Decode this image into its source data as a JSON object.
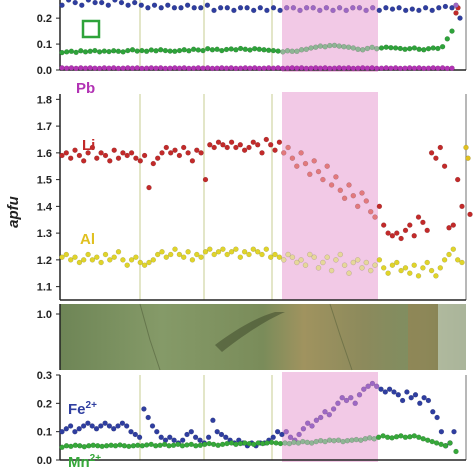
{
  "colors": {
    "highlight": "#f2c9e6",
    "axis": "#222222",
    "guide": "#e3e6c8",
    "frame": "#888888",
    "lead": "#b233b4",
    "green_box": "#2ea33a",
    "lithium": "#c22a2a",
    "lithium_in_band": "#e2797d",
    "aluminium": "#e0d42a",
    "aluminium_in_band": "#e6d79a",
    "iron": "#2f3ea0",
    "iron_in_band": "#9d68c4",
    "manganese": "#36a83a",
    "manganese_in_band": "#8fb595",
    "core_photo_base": "#788e5e",
    "core_photo_band": "#a3966a"
  },
  "chart_data": [
    {
      "id": "top",
      "type": "scatter",
      "ylim": [
        0,
        0.27
      ],
      "yticks": [
        "0.0",
        "0.1",
        "0.2"
      ],
      "ytick_values": [
        0,
        0.1,
        0.2
      ],
      "legend_marker": "green-square",
      "labels": [
        {
          "text": "Pb",
          "color": "#b233b4"
        }
      ],
      "series": [
        {
          "key": "green",
          "color": "#2ea33a",
          "band_color": "#8fb595",
          "y": [
            0.067,
            0.07,
            0.072,
            0.068,
            0.074,
            0.07,
            0.072,
            0.075,
            0.07,
            0.073,
            0.071,
            0.074,
            0.072,
            0.07,
            0.075,
            0.078,
            0.073,
            0.075,
            0.072,
            0.077,
            0.074,
            0.078,
            0.075,
            0.073,
            0.072,
            0.075,
            0.078,
            0.074,
            0.08,
            0.077,
            0.075,
            0.082,
            0.078,
            0.08,
            0.075,
            0.079,
            0.081,
            0.078,
            0.083,
            0.08,
            0.077,
            0.082,
            0.08,
            0.078,
            0.076,
            0.075,
            0.073,
            0.07,
            0.074,
            0.072,
            0.072,
            0.078,
            0.08,
            0.085,
            0.088,
            0.092,
            0.09,
            0.094,
            0.095,
            0.092,
            0.09,
            0.088,
            0.085,
            0.08,
            0.078,
            0.083,
            0.087,
            0.082,
            0.085,
            0.088,
            0.086,
            0.085,
            0.083,
            0.08,
            0.082,
            0.085,
            0.08,
            0.078,
            0.082,
            0.085,
            0.083,
            0.09,
            0.12,
            0.15
          ]
        },
        {
          "key": "blue",
          "color": "#2f3ea0",
          "band_color": "#9d68c4",
          "y": [
            0.25,
            0.27,
            0.26,
            0.25,
            0.27,
            0.26,
            0.26,
            0.25,
            0.27,
            0.26,
            0.25,
            0.26,
            0.25,
            0.24,
            0.25,
            0.24,
            0.25,
            0.24,
            0.24,
            0.25,
            0.24,
            0.24,
            0.25,
            0.23,
            0.24,
            0.24,
            0.23,
            0.24,
            0.24,
            0.23,
            0.24,
            0.23,
            0.24,
            0.23,
            0.24,
            0.24,
            0.23,
            0.24,
            0.24,
            0.23,
            0.24,
            0.23,
            0.24,
            0.23,
            0.24,
            0.24,
            0.23,
            0.24,
            0.23,
            0.24,
            0.235,
            0.24,
            0.23,
            0.235,
            0.23,
            0.24,
            0.23,
            0.24,
            0.245,
            0.24
          ]
        },
        {
          "key": "lead",
          "color": "#b233b4",
          "band_color": "#b233b4",
          "y": [
            0.008,
            0.007,
            0.008,
            0.006,
            0.008,
            0.007,
            0.008,
            0.007,
            0.006,
            0.008,
            0.007,
            0.008,
            0.006,
            0.007,
            0.008,
            0.007,
            0.008,
            0.006,
            0.007,
            0.008,
            0.007,
            0.008,
            0.006,
            0.007,
            0.008,
            0.007,
            0.008,
            0.006,
            0.007,
            0.008,
            0.007,
            0.008,
            0.006,
            0.007,
            0.008,
            0.007,
            0.008,
            0.006,
            0.007,
            0.008,
            0.007,
            0.008,
            0.006,
            0.007,
            0.008,
            0.007,
            0.008,
            0.006,
            0.007,
            0.008,
            0.007,
            0.008,
            0.006,
            0.007,
            0.008,
            0.007,
            0.008,
            0.006,
            0.007,
            0.008,
            0.007,
            0.008,
            0.006,
            0.007,
            0.008,
            0.007,
            0.008,
            0.006,
            0.007,
            0.008,
            0.007,
            0.008,
            0.006,
            0.007,
            0.008,
            0.007,
            0.008,
            0.006,
            0.007,
            0.008,
            0.007,
            0.008,
            0.006,
            0.007
          ]
        }
      ],
      "extra_points": [
        {
          "y": 0.22,
          "color": "#c22a2a"
        },
        {
          "y": 0.24,
          "color": "#c22a2a"
        },
        {
          "y": 0.2,
          "color": "#2f3ea0"
        },
        {
          "y": 0.25,
          "color": "#9d68c4"
        }
      ]
    },
    {
      "id": "middle",
      "type": "scatter",
      "ylabel": "apfu",
      "ylim": [
        1.05,
        1.82
      ],
      "yticks": [
        "1.1",
        "1.2",
        "1.3",
        "1.4",
        "1.5",
        "1.6",
        "1.7",
        "1.8"
      ],
      "ytick_values": [
        1.1,
        1.2,
        1.3,
        1.4,
        1.5,
        1.6,
        1.7,
        1.8
      ],
      "labels": [
        {
          "text": "Li",
          "color": "#c22a2a"
        },
        {
          "text": "Al",
          "color": "#e0c020"
        }
      ],
      "series": [
        {
          "key": "li",
          "color": "#c22a2a",
          "band_color": "#e2797d",
          "y": [
            1.59,
            1.6,
            1.58,
            1.61,
            1.59,
            1.57,
            1.6,
            1.62,
            1.58,
            1.6,
            1.59,
            1.57,
            1.61,
            1.58,
            1.6,
            1.59,
            1.6,
            1.58,
            1.57,
            1.59,
            1.47,
            1.56,
            1.58,
            1.6,
            1.62,
            1.6,
            1.61,
            1.59,
            1.62,
            1.6,
            1.57,
            1.61,
            1.6,
            1.5,
            1.63,
            1.62,
            1.64,
            1.63,
            1.62,
            1.64,
            1.62,
            1.63,
            1.61,
            1.62,
            1.64,
            1.63,
            1.6,
            1.65,
            1.63,
            1.61,
            1.64,
            1.6,
            1.62,
            1.58,
            1.55,
            1.6,
            1.56,
            1.52,
            1.57,
            1.53,
            1.5,
            1.55,
            1.48,
            1.51,
            1.46,
            1.43,
            1.48,
            1.44,
            1.4,
            1.45,
            1.42,
            1.38,
            1.36,
            1.4,
            1.33,
            1.3,
            1.29,
            1.3,
            1.28,
            1.31,
            1.33,
            1.29,
            1.36,
            1.34,
            1.31,
            1.6,
            1.58,
            1.62,
            1.55,
            1.32,
            1.33,
            1.5,
            1.4
          ]
        },
        {
          "key": "al",
          "color": "#e0d42a",
          "band_color": "#e6d79a",
          "y": [
            1.21,
            1.22,
            1.2,
            1.21,
            1.19,
            1.2,
            1.22,
            1.2,
            1.21,
            1.19,
            1.22,
            1.2,
            1.21,
            1.23,
            1.2,
            1.18,
            1.2,
            1.21,
            1.19,
            1.18,
            1.19,
            1.2,
            1.22,
            1.23,
            1.21,
            1.22,
            1.24,
            1.22,
            1.21,
            1.23,
            1.2,
            1.22,
            1.21,
            1.23,
            1.24,
            1.22,
            1.23,
            1.24,
            1.22,
            1.23,
            1.24,
            1.21,
            1.23,
            1.22,
            1.24,
            1.23,
            1.22,
            1.24,
            1.21,
            1.22,
            1.21,
            1.2,
            1.22,
            1.21,
            1.19,
            1.2,
            1.18,
            1.22,
            1.21,
            1.17,
            1.19,
            1.21,
            1.16,
            1.2,
            1.22,
            1.18,
            1.15,
            1.19,
            1.2,
            1.17,
            1.19,
            1.16,
            1.18,
            1.2,
            1.17,
            1.15,
            1.18,
            1.19,
            1.16,
            1.17,
            1.15,
            1.18,
            1.14,
            1.17,
            1.19,
            1.16,
            1.14,
            1.17,
            1.2,
            1.22,
            1.24,
            1.2,
            1.19
          ]
        }
      ],
      "extra_points": [
        {
          "y": 1.62,
          "color": "#e0c020"
        },
        {
          "y": 1.58,
          "color": "#e0c020"
        },
        {
          "y": 1.37,
          "color": "#c22a2a"
        }
      ]
    },
    {
      "id": "core_image",
      "type": "table",
      "yticks": [
        "1.0"
      ]
    },
    {
      "id": "bottom",
      "type": "scatter",
      "ylim": [
        0,
        0.3
      ],
      "yticks": [
        "0.0",
        "0.1",
        "0.2",
        "0.3"
      ],
      "ytick_values": [
        0,
        0.1,
        0.2,
        0.3
      ],
      "labels": [
        {
          "text": "Fe",
          "superscript": "2+",
          "color": "#2f3ea0"
        },
        {
          "text": "Mn",
          "superscript": "2+",
          "color": "#36a83a"
        }
      ],
      "series": [
        {
          "key": "fe",
          "color": "#2f3ea0",
          "band_color": "#9d68c4",
          "y": [
            0.1,
            0.11,
            0.12,
            0.1,
            0.11,
            0.12,
            0.13,
            0.12,
            0.11,
            0.12,
            0.13,
            0.12,
            0.11,
            0.12,
            0.13,
            0.12,
            0.1,
            0.09,
            0.08,
            0.18,
            0.15,
            0.12,
            0.1,
            0.08,
            0.07,
            0.08,
            0.07,
            0.06,
            0.07,
            0.09,
            0.1,
            0.08,
            0.07,
            0.06,
            0.08,
            0.14,
            0.1,
            0.09,
            0.08,
            0.07,
            0.06,
            0.07,
            0.06,
            0.05,
            0.06,
            0.05,
            0.06,
            0.06,
            0.07,
            0.08,
            0.1,
            0.09,
            0.1,
            0.08,
            0.07,
            0.09,
            0.11,
            0.13,
            0.12,
            0.14,
            0.15,
            0.17,
            0.16,
            0.18,
            0.2,
            0.22,
            0.21,
            0.22,
            0.2,
            0.23,
            0.25,
            0.26,
            0.27,
            0.26,
            0.25,
            0.24,
            0.25,
            0.24,
            0.23,
            0.21,
            0.24,
            0.22,
            0.23,
            0.2,
            0.22,
            0.21,
            0.17,
            0.15,
            0.1,
            0.05,
            0.06
          ]
        },
        {
          "key": "mn",
          "color": "#36a83a",
          "band_color": "#8fb595",
          "y": [
            0.045,
            0.05,
            0.048,
            0.052,
            0.05,
            0.047,
            0.05,
            0.052,
            0.05,
            0.048,
            0.05,
            0.052,
            0.05,
            0.053,
            0.05,
            0.048,
            0.05,
            0.052,
            0.05,
            0.053,
            0.055,
            0.05,
            0.052,
            0.055,
            0.05,
            0.052,
            0.055,
            0.05,
            0.053,
            0.055,
            0.05,
            0.052,
            0.055,
            0.058,
            0.055,
            0.052,
            0.055,
            0.058,
            0.06,
            0.055,
            0.058,
            0.06,
            0.058,
            0.055,
            0.06,
            0.058,
            0.06,
            0.062,
            0.06,
            0.058,
            0.06,
            0.058,
            0.062,
            0.06,
            0.065,
            0.062,
            0.06,
            0.065,
            0.068,
            0.065,
            0.07,
            0.068,
            0.07,
            0.065,
            0.068,
            0.07,
            0.072,
            0.07,
            0.075,
            0.078,
            0.075,
            0.08,
            0.085,
            0.08,
            0.078,
            0.082,
            0.085,
            0.08,
            0.082,
            0.085,
            0.08,
            0.075,
            0.07,
            0.065,
            0.06,
            0.055,
            0.05,
            0.06
          ]
        }
      ],
      "extra_points": [
        {
          "y": 0.1,
          "color": "#2f3ea0"
        },
        {
          "y": 0.03,
          "color": "#36a83a"
        }
      ]
    }
  ]
}
